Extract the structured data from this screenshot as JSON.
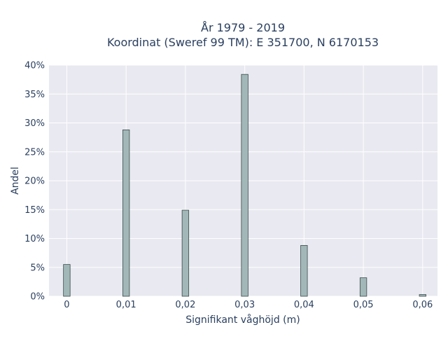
{
  "chart_data": {
    "type": "bar",
    "title_line1": "År 1979 - 2019",
    "title_line2": "Koordinat (Sweref 99 TM): E 351700, N 6170153",
    "xlabel": "Signifikant våghöjd (m)",
    "ylabel": "Andel",
    "x": [
      0,
      0.01,
      0.02,
      0.03,
      0.04,
      0.05,
      0.06
    ],
    "values": [
      5.5,
      28.8,
      14.9,
      38.4,
      8.8,
      3.2,
      0.3
    ],
    "x_ticks": [
      "0",
      "0,01",
      "0,02",
      "0,03",
      "0,04",
      "0,05",
      "0,06"
    ],
    "y_ticks": [
      "0%",
      "5%",
      "10%",
      "15%",
      "20%",
      "25%",
      "30%",
      "35%",
      "40%"
    ],
    "ylim": [
      0,
      40
    ],
    "xlim": [
      -0.003,
      0.0625
    ],
    "grid": true,
    "colors": {
      "plot_bg": "#e9e9f1",
      "grid": "#ffffff",
      "bar_fill": "#a2b8b8",
      "bar_stroke": "#3a4a4a",
      "text": "#2a3f5f"
    }
  }
}
